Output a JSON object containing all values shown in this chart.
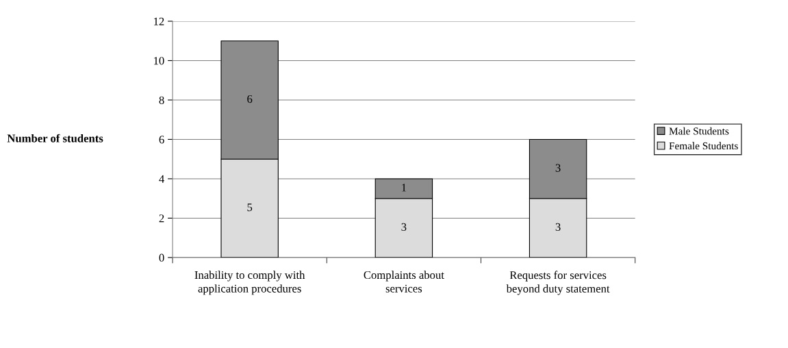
{
  "chart_data": {
    "type": "bar",
    "stacked": true,
    "ylabel": "Number of students",
    "categories": [
      "Inability to comply with\napplication procedures",
      "Complaints about\nservices",
      "Requests for services\nbeyond duty statement"
    ],
    "series": [
      {
        "name": "Female Students",
        "color": "#dcdcdc",
        "values": [
          5,
          3,
          3
        ]
      },
      {
        "name": "Male Students",
        "color": "#8c8c8c",
        "values": [
          6,
          1,
          3
        ]
      }
    ],
    "ylim": [
      0,
      12
    ],
    "yticks": [
      0,
      2,
      4,
      6,
      8,
      10,
      12
    ],
    "grid": "y",
    "legend": "right",
    "data_labels": true
  }
}
